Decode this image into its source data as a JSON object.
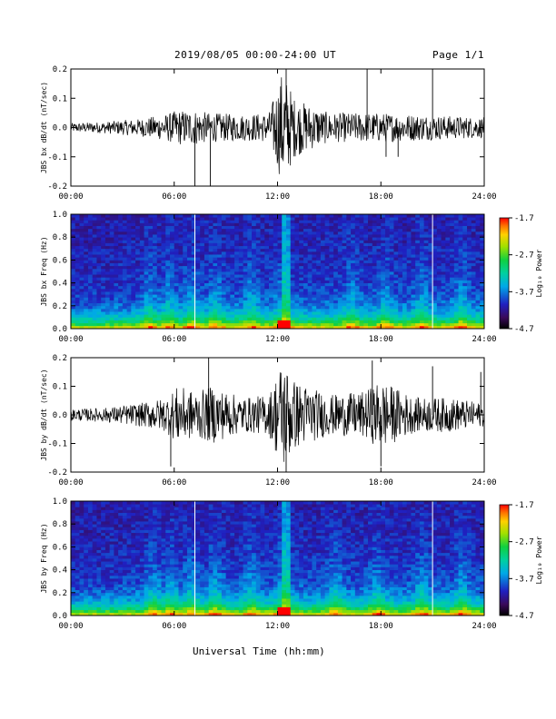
{
  "header": {
    "date_range": "2019/08/05  00:00-24:00 UT",
    "page": "Page 1/1"
  },
  "x_axis_title": "Universal Time (hh:mm)",
  "colorbar": {
    "title": "Log₁₀ Power",
    "ticks": [
      "-1.7",
      "-2.7",
      "-3.7",
      "-4.7"
    ],
    "values": [
      -1.7,
      -2.7,
      -3.7,
      -4.7
    ]
  },
  "chart_data": [
    {
      "type": "line",
      "ylabel": "JBS bx dB/dt (nT/sec)",
      "xlim": [
        0,
        24
      ],
      "ylim": [
        -0.2,
        0.2
      ],
      "yticks": [
        "0.2",
        "0.1",
        "0.0",
        "-0.1",
        "-0.2"
      ],
      "ytick_values": [
        0.2,
        0.1,
        0.0,
        -0.1,
        -0.2
      ],
      "xticks": [
        "00:00",
        "06:00",
        "12:00",
        "18:00",
        "24:00"
      ],
      "xtick_values": [
        0,
        6,
        12,
        18,
        24
      ],
      "envelope_hours": [
        0,
        2,
        4,
        5.5,
        6.2,
        7.3,
        8,
        10,
        11.5,
        12.3,
        13,
        15,
        17,
        18,
        20,
        22,
        24
      ],
      "envelope_amplitude": [
        0.015,
        0.02,
        0.03,
        0.045,
        0.06,
        0.06,
        0.05,
        0.045,
        0.05,
        0.2,
        0.1,
        0.05,
        0.05,
        0.05,
        0.045,
        0.04,
        0.035
      ],
      "spikes": [
        {
          "hour": 7.2,
          "value": -0.2
        },
        {
          "hour": 8.1,
          "value": -0.2
        },
        {
          "hour": 12.5,
          "value": 0.2
        },
        {
          "hour": 17.2,
          "value": 0.2
        },
        {
          "hour": 21.0,
          "value": 0.2
        },
        {
          "hour": 18.3,
          "value": -0.1
        },
        {
          "hour": 19.0,
          "value": -0.1
        }
      ]
    },
    {
      "type": "heatmap",
      "ylabel": "JBS bx Freq (Hz)",
      "xlim": [
        0,
        24
      ],
      "ylim": [
        0.0,
        1.0
      ],
      "yticks": [
        "1.0",
        "0.8",
        "0.6",
        "0.4",
        "0.2",
        "0.0"
      ],
      "ytick_values": [
        1.0,
        0.8,
        0.6,
        0.4,
        0.2,
        0.0
      ],
      "xticks": [
        "00:00",
        "06:00",
        "12:00",
        "18:00",
        "24:00"
      ],
      "xtick_values": [
        0,
        6,
        12,
        18,
        24
      ],
      "zlim": [
        -4.7,
        -1.7
      ],
      "bright_bands_hours": [
        4.6,
        5.7,
        7.0,
        8.4,
        10.5,
        12.3,
        16.3,
        18.3,
        20.4,
        22.7
      ],
      "data_gaps_hours": [
        7.2,
        21.0
      ]
    },
    {
      "type": "line",
      "ylabel": "JBS by dB/dt (nT/sec)",
      "xlim": [
        0,
        24
      ],
      "ylim": [
        -0.2,
        0.2
      ],
      "yticks": [
        "0.2",
        "0.1",
        "0.0",
        "-0.1",
        "-0.2"
      ],
      "ytick_values": [
        0.2,
        0.1,
        0.0,
        -0.1,
        -0.2
      ],
      "xticks": [
        "00:00",
        "06:00",
        "12:00",
        "18:00",
        "24:00"
      ],
      "xtick_values": [
        0,
        6,
        12,
        18,
        24
      ],
      "envelope_hours": [
        0,
        2,
        4,
        5.5,
        6.2,
        7.3,
        8.2,
        10,
        11.5,
        12.3,
        13,
        15,
        17,
        18,
        20,
        22,
        24
      ],
      "envelope_amplitude": [
        0.02,
        0.025,
        0.04,
        0.06,
        0.1,
        0.08,
        0.1,
        0.06,
        0.07,
        0.2,
        0.12,
        0.07,
        0.08,
        0.12,
        0.06,
        0.06,
        0.04
      ],
      "spikes": [
        {
          "hour": 5.8,
          "value": -0.18
        },
        {
          "hour": 8.0,
          "value": 0.2
        },
        {
          "hour": 12.5,
          "value": -0.2
        },
        {
          "hour": 18.0,
          "value": -0.18
        },
        {
          "hour": 17.5,
          "value": 0.19
        },
        {
          "hour": 21.0,
          "value": 0.17
        },
        {
          "hour": 23.8,
          "value": 0.15
        }
      ]
    },
    {
      "type": "heatmap",
      "ylabel": "JBS by Freq (Hz)",
      "xlim": [
        0,
        24
      ],
      "ylim": [
        0.0,
        1.0
      ],
      "yticks": [
        "1.0",
        "0.8",
        "0.6",
        "0.4",
        "0.2",
        "0.0"
      ],
      "ytick_values": [
        1.0,
        0.8,
        0.6,
        0.4,
        0.2,
        0.0
      ],
      "xticks": [
        "00:00",
        "06:00",
        "12:00",
        "18:00",
        "24:00"
      ],
      "xtick_values": [
        0,
        6,
        12,
        18,
        24
      ],
      "zlim": [
        -4.7,
        -1.7
      ],
      "bright_bands_hours": [
        4.8,
        5.8,
        7.0,
        8.4,
        10.5,
        12.3,
        15.4,
        17.8,
        20.4,
        22.7
      ],
      "data_gaps_hours": [
        7.2,
        21.0
      ]
    }
  ]
}
